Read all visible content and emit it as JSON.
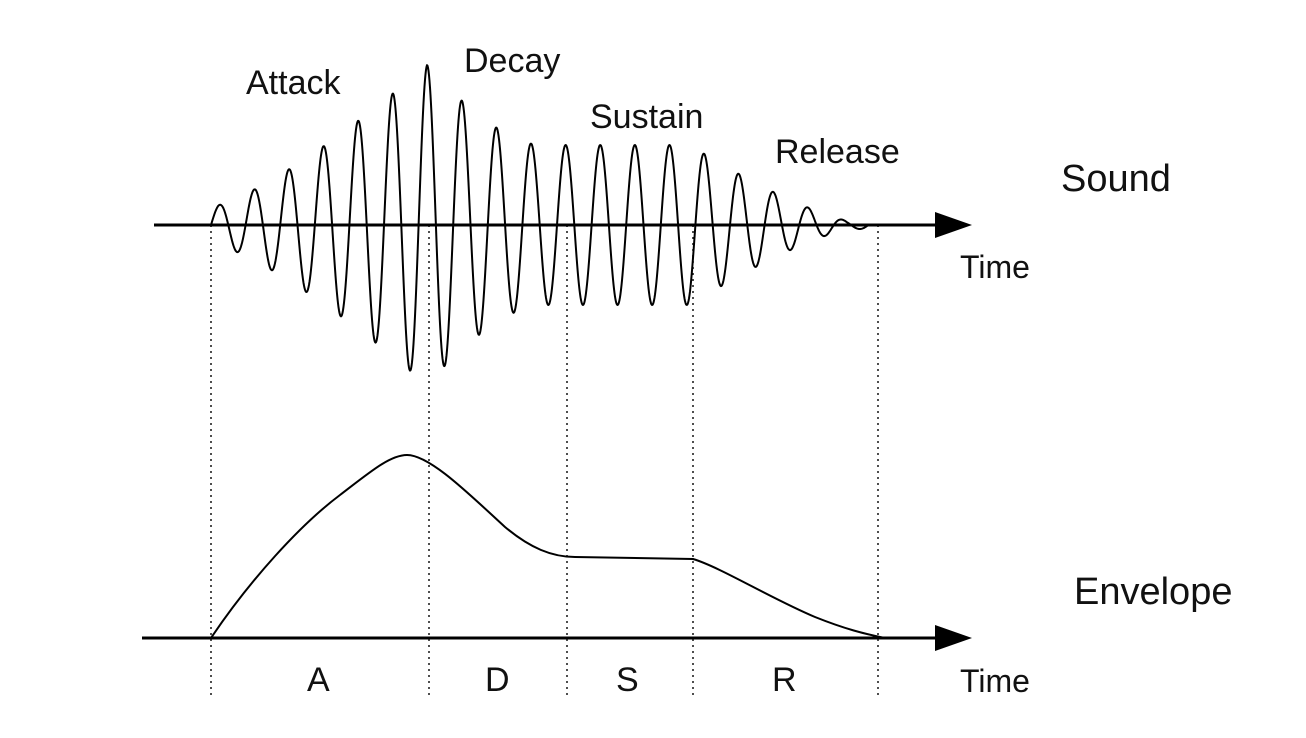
{
  "sound": {
    "phase_labels": {
      "attack": "Attack",
      "decay": "Decay",
      "sustain": "Sustain",
      "release": "Release"
    },
    "row_label": "Sound",
    "axis_label": "Time"
  },
  "envelope": {
    "row_label": "Envelope",
    "axis_label": "Time",
    "segment_labels": {
      "a": "A",
      "d": "D",
      "s": "S",
      "r": "R"
    }
  },
  "colors": {
    "stroke": "#000000",
    "background": "#ffffff"
  }
}
